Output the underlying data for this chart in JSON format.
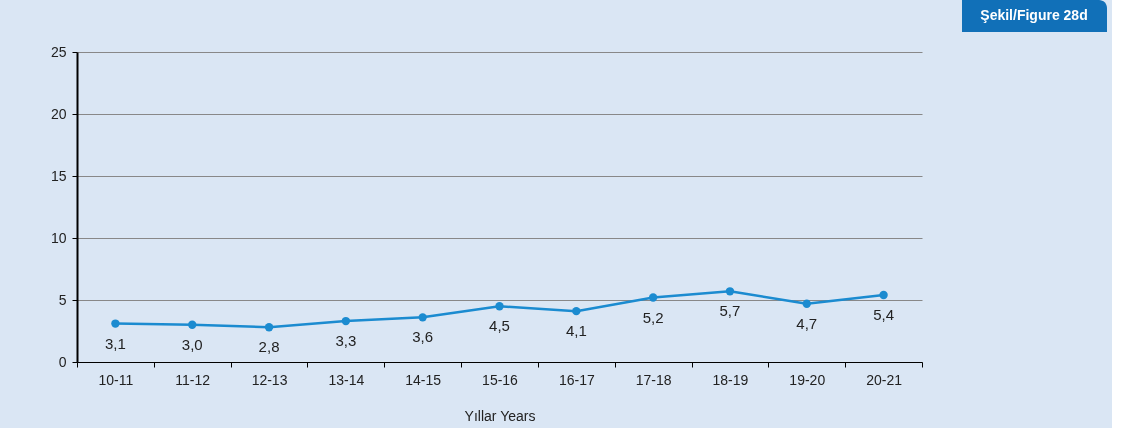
{
  "chart_data": {
    "type": "line",
    "title": "Şekil/Figure 28d",
    "xlabel": "Yıllar Years",
    "categories": [
      "10-11",
      "11-12",
      "12-13",
      "13-14",
      "14-15",
      "15-16",
      "16-17",
      "17-18",
      "18-19",
      "19-20",
      "20-21"
    ],
    "series": [
      {
        "color": "#1b8bd0",
        "values": [
          3.1,
          3.0,
          2.8,
          3.3,
          3.6,
          4.5,
          4.1,
          5.2,
          5.7,
          4.7,
          5.4
        ],
        "value_labels": [
          "3,1",
          "3,0",
          "2,8",
          "3,3",
          "3,6",
          "4,5",
          "4,1",
          "5,2",
          "5,7",
          "4,7",
          "5,4"
        ]
      }
    ],
    "ylim": [
      0,
      25
    ],
    "yticks": [
      0,
      5,
      10,
      15,
      20,
      25
    ],
    "grid": "y",
    "marker": "circle",
    "line_style": "solid"
  }
}
